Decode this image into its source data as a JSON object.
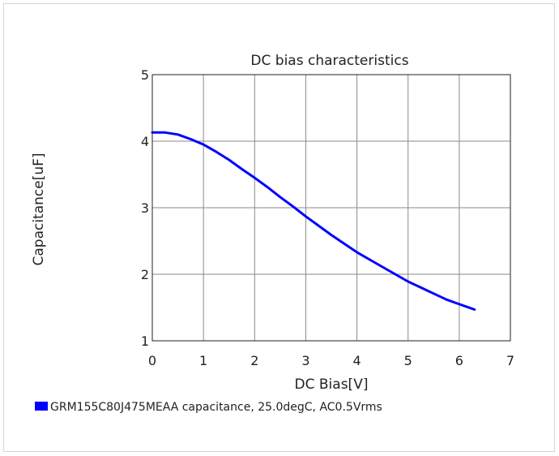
{
  "chart_data": {
    "type": "line",
    "title": "DC bias characteristics",
    "xlabel": "DC Bias[V]",
    "ylabel": "Capacitance[uF]",
    "xlim": [
      0,
      7
    ],
    "ylim": [
      1,
      5
    ],
    "xticks": [
      "0",
      "1",
      "2",
      "3",
      "4",
      "5",
      "6",
      "7"
    ],
    "yticks": [
      "1",
      "2",
      "3",
      "4",
      "5"
    ],
    "grid": true,
    "legend_position": "bottom-left",
    "series": [
      {
        "name": "GRM155C80J475MEAA capacitance, 25.0degC, AC0.5Vrms",
        "color": "#0000ff",
        "x": [
          0.0,
          0.25,
          0.5,
          0.75,
          1.0,
          1.25,
          1.5,
          1.75,
          2.0,
          2.25,
          2.5,
          2.75,
          3.0,
          3.25,
          3.5,
          3.75,
          4.0,
          4.25,
          4.5,
          4.75,
          5.0,
          5.25,
          5.5,
          5.75,
          6.0,
          6.3
        ],
        "y": [
          4.13,
          4.13,
          4.1,
          4.03,
          3.95,
          3.84,
          3.72,
          3.58,
          3.45,
          3.31,
          3.16,
          3.02,
          2.87,
          2.73,
          2.59,
          2.46,
          2.33,
          2.22,
          2.11,
          2.0,
          1.89,
          1.8,
          1.71,
          1.62,
          1.55,
          1.47
        ]
      }
    ]
  }
}
